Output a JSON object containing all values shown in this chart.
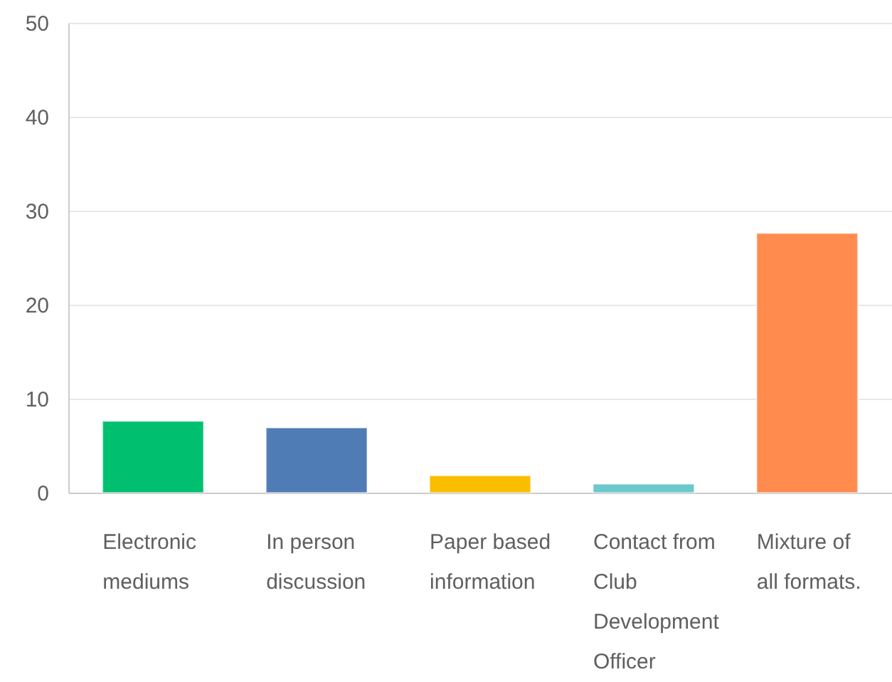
{
  "chart_data": {
    "type": "bar",
    "categories": [
      "Electronic mediums",
      "In person discussion",
      "Paper based information",
      "Contact from Club Development Officer",
      "Mixture of all formats."
    ],
    "values": [
      7.6,
      6.9,
      1.8,
      0.9,
      27.6
    ],
    "colors": [
      "#00bf6f",
      "#507cb6",
      "#f9be00",
      "#6bc8cd",
      "#ff8b4f"
    ],
    "ylim": [
      0,
      50
    ],
    "yticks": [
      0,
      10,
      20,
      30,
      40,
      50
    ],
    "grid": "y"
  }
}
